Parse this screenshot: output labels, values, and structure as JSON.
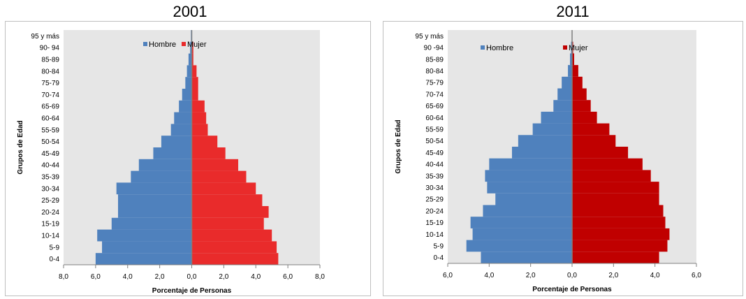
{
  "chart_data": [
    {
      "type": "bar",
      "title": "2001",
      "xlabel": "Porcentaje de Personas",
      "ylabel": "Grupos de Edad",
      "categories": [
        "0-4",
        "5-9",
        "10-14",
        "15-19",
        "20-24",
        "25-29",
        "30-34",
        "35-39",
        "40-44",
        "45-49",
        "50-54",
        "55-59",
        "60-64",
        "65-69",
        "70-74",
        "75-79",
        "80-84",
        "85-89",
        "90- 94",
        "95 y más"
      ],
      "series": [
        {
          "name": "Hombre",
          "color": "#4f81bd",
          "values": [
            6.0,
            5.6,
            5.9,
            5.0,
            4.6,
            4.6,
            4.7,
            3.8,
            3.3,
            2.4,
            1.9,
            1.3,
            1.1,
            0.8,
            0.6,
            0.4,
            0.3,
            0.2,
            0.1,
            0.05
          ]
        },
        {
          "name": "Mujer",
          "color": "#e92b2b",
          "values": [
            5.4,
            5.3,
            5.0,
            4.5,
            4.8,
            4.4,
            4.0,
            3.4,
            2.9,
            2.1,
            1.6,
            1.0,
            0.9,
            0.8,
            0.4,
            0.4,
            0.3,
            0.1,
            0.1,
            0.0
          ]
        }
      ],
      "xlim": [
        -8,
        8
      ],
      "xticks": [
        "8,0",
        "6,0",
        "4,0",
        "2,0",
        "0,0",
        "2,0",
        "4,0",
        "6,0",
        "8,0"
      ],
      "grid": false,
      "legend": "top"
    },
    {
      "type": "bar",
      "title": "2011",
      "xlabel": "Porcentaje de Personas",
      "ylabel": "Grupos de Edad",
      "categories": [
        "0-4",
        "5-9",
        "10-14",
        "15-19",
        "20-24",
        "25-29",
        "30-34",
        "35-39",
        "40-44",
        "45-49",
        "50-54",
        "55-59",
        "60-64",
        "65-69",
        "70-74",
        "75-79",
        "80-84",
        "85-89",
        "90 -94",
        "95 y más"
      ],
      "series": [
        {
          "name": "Hombre",
          "color": "#4f81bd",
          "values": [
            4.4,
            5.1,
            4.8,
            4.9,
            4.3,
            3.7,
            4.1,
            4.2,
            4.0,
            2.9,
            2.6,
            1.9,
            1.5,
            0.9,
            0.7,
            0.5,
            0.2,
            0.1,
            0.05,
            0.0
          ]
        },
        {
          "name": "Mujer",
          "color": "#c00000",
          "values": [
            4.2,
            4.6,
            4.7,
            4.5,
            4.4,
            4.2,
            4.2,
            3.8,
            3.4,
            2.7,
            2.1,
            1.8,
            1.2,
            0.9,
            0.7,
            0.5,
            0.3,
            0.1,
            0.05,
            0.0
          ]
        }
      ],
      "xlim": [
        -6,
        6
      ],
      "xticks": [
        "6,0",
        "4,0",
        "2,0",
        "0,0",
        "2,0",
        "4,0",
        "6,0"
      ],
      "grid": false,
      "legend": "top"
    }
  ]
}
